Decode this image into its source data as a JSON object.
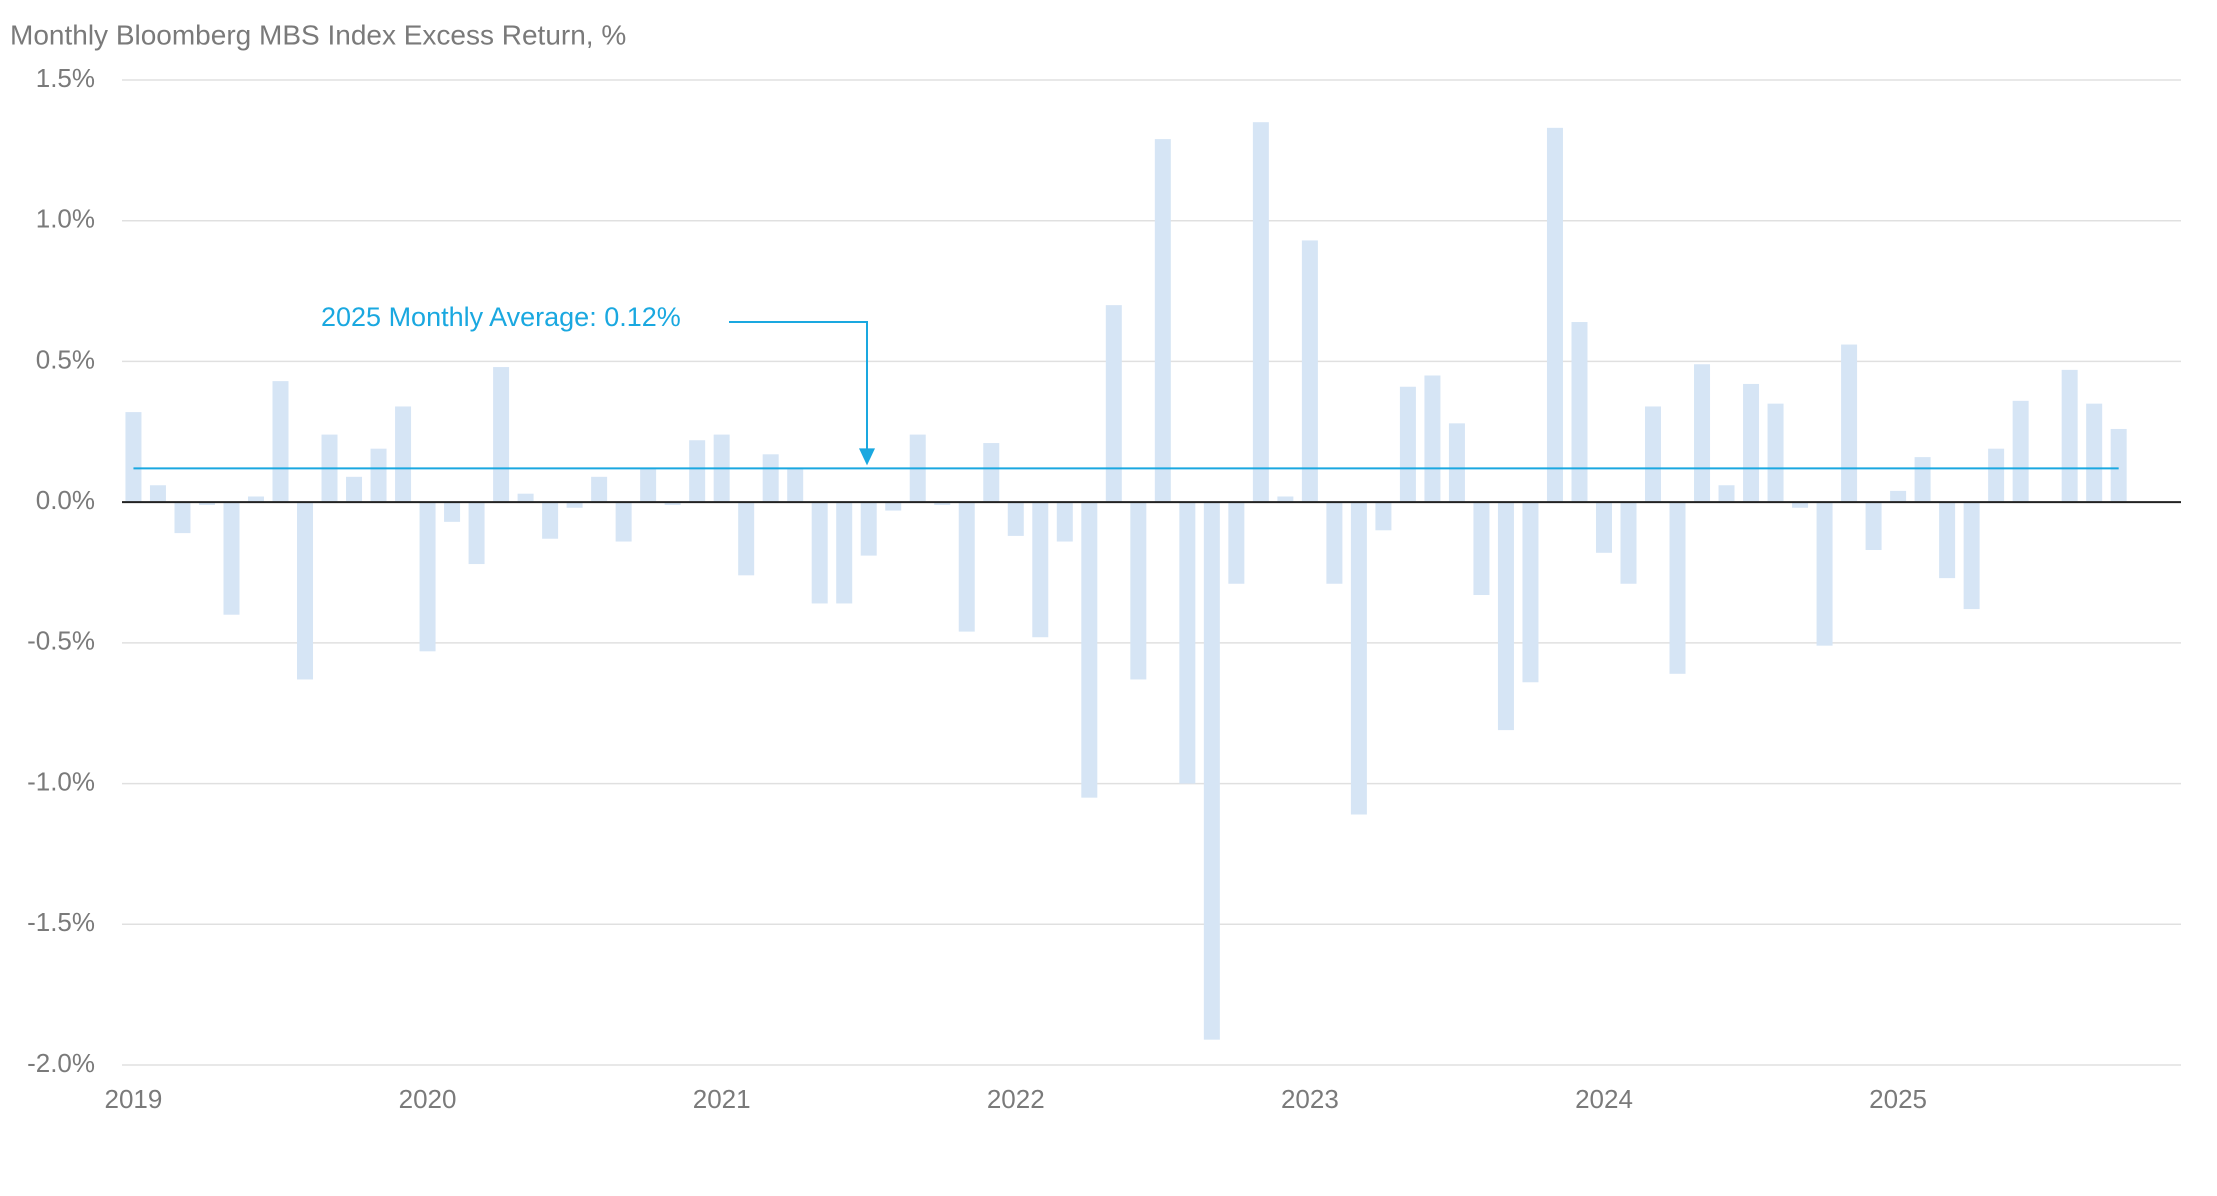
{
  "chart_data": {
    "type": "bar",
    "title": "Monthly Bloomberg MBS Index Excess Return, %",
    "categories": [
      "2019",
      null,
      null,
      null,
      null,
      null,
      null,
      null,
      null,
      null,
      null,
      null,
      "2020",
      null,
      null,
      null,
      null,
      null,
      null,
      null,
      null,
      null,
      null,
      null,
      "2021",
      null,
      null,
      null,
      null,
      null,
      null,
      null,
      null,
      null,
      null,
      null,
      "2022",
      null,
      null,
      null,
      null,
      null,
      null,
      null,
      null,
      null,
      null,
      null,
      "2023",
      null,
      null,
      null,
      null,
      null,
      null,
      null,
      null,
      null,
      null,
      null,
      "2024",
      null,
      null,
      null,
      null,
      null,
      null,
      null,
      null,
      null,
      null,
      null,
      "2025",
      null,
      null,
      null,
      null,
      null,
      null,
      null,
      null,
      null
    ],
    "values": [
      0.32,
      0.06,
      -0.11,
      -0.01,
      -0.4,
      0.02,
      0.43,
      -0.63,
      0.24,
      0.09,
      0.19,
      0.34,
      -0.53,
      -0.07,
      -0.22,
      0.48,
      0.03,
      -0.13,
      -0.02,
      0.09,
      -0.14,
      0.12,
      -0.01,
      0.22,
      0.24,
      -0.26,
      0.17,
      0.12,
      -0.36,
      -0.36,
      -0.19,
      -0.03,
      0.24,
      -0.01,
      -0.46,
      0.21,
      -0.12,
      -0.48,
      -0.14,
      -1.05,
      0.7,
      -0.63,
      1.29,
      -1.0,
      -1.91,
      -0.29,
      1.35,
      0.02,
      0.93,
      -0.29,
      -1.11,
      -0.1,
      0.41,
      0.45,
      0.28,
      -0.33,
      -0.81,
      -0.64,
      1.33,
      0.64,
      -0.18,
      -0.29,
      0.34,
      -0.61,
      0.49,
      0.06,
      0.42,
      0.35,
      -0.02,
      -0.51,
      0.56,
      -0.17,
      0.04,
      0.16,
      -0.27,
      -0.38,
      0.19,
      0.36,
      0.0,
      0.47,
      0.35,
      0.26
    ],
    "color": "#d6e5f5",
    "ylim": [
      -2.0,
      1.5
    ],
    "yticks": [
      {
        "value": -2.0,
        "label": "-2.0%"
      },
      {
        "value": -1.5,
        "label": "-1.5%"
      },
      {
        "value": -1.0,
        "label": "-1.0%"
      },
      {
        "value": -0.5,
        "label": "-0.5%"
      },
      {
        "value": 0,
        "label": "0.0%"
      },
      {
        "value": 0.5,
        "label": "0.5%"
      },
      {
        "value": 1.0,
        "label": "1.0%"
      },
      {
        "value": 1.5,
        "label": "1.5%"
      }
    ],
    "grid": true,
    "reference_line": {
      "value": 0.12,
      "label": "2025 Monthly Average: 0.12%",
      "color": "#1aa8e0"
    }
  }
}
